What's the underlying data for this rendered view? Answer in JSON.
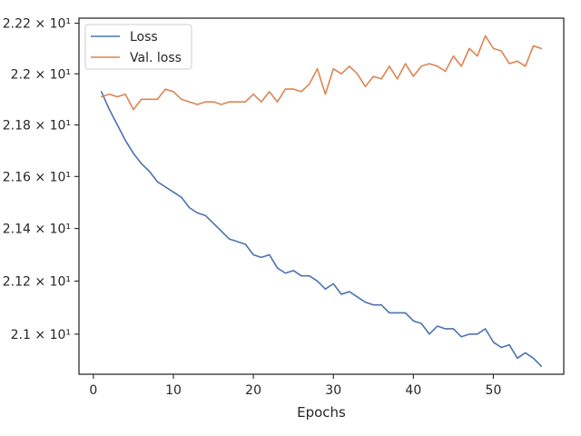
{
  "chart_data": {
    "type": "line",
    "title": "",
    "xlabel": "Epochs",
    "ylabel": "",
    "xlim": [
      -1.8,
      58.8
    ],
    "ylim": [
      20.85,
      22.22
    ],
    "y_scale": "log",
    "x_ticks": [
      0,
      10,
      20,
      30,
      40,
      50
    ],
    "x_tick_labels": [
      "0",
      "10",
      "20",
      "30",
      "40",
      "50"
    ],
    "y_ticks": [
      21.0,
      21.2,
      21.4,
      21.6,
      21.8,
      22.0,
      22.2
    ],
    "y_tick_labels": [
      "2.1 × 10¹",
      "2.12 × 10¹",
      "2.14 × 10¹",
      "2.16 × 10¹",
      "2.18 × 10¹",
      "2.2 × 10¹",
      "2.22 × 10¹"
    ],
    "grid": false,
    "legend_position": "top-left",
    "x": [
      1,
      2,
      3,
      4,
      5,
      6,
      7,
      8,
      9,
      10,
      11,
      12,
      13,
      14,
      15,
      16,
      17,
      18,
      19,
      20,
      21,
      22,
      23,
      24,
      25,
      26,
      27,
      28,
      29,
      30,
      31,
      32,
      33,
      34,
      35,
      36,
      37,
      38,
      39,
      40,
      41,
      42,
      43,
      44,
      45,
      46,
      47,
      48,
      49,
      50,
      51,
      52,
      53,
      54,
      55,
      56
    ],
    "series": [
      {
        "name": "Loss",
        "color": "#4c72b0",
        "values": [
          21.93,
          21.86,
          21.8,
          21.74,
          21.69,
          21.65,
          21.62,
          21.58,
          21.56,
          21.54,
          21.52,
          21.48,
          21.46,
          21.45,
          21.42,
          21.39,
          21.36,
          21.35,
          21.34,
          21.3,
          21.29,
          21.3,
          21.25,
          21.23,
          21.24,
          21.22,
          21.22,
          21.2,
          21.17,
          21.19,
          21.15,
          21.16,
          21.14,
          21.12,
          21.11,
          21.11,
          21.08,
          21.08,
          21.08,
          21.05,
          21.04,
          21.0,
          21.03,
          21.02,
          21.02,
          20.99,
          21.0,
          21.0,
          21.02,
          20.97,
          20.95,
          20.96,
          20.91,
          20.93,
          20.91,
          20.88
        ]
      },
      {
        "name": "Val. loss",
        "color": "#dd8452",
        "values": [
          21.91,
          21.92,
          21.91,
          21.92,
          21.86,
          21.9,
          21.9,
          21.9,
          21.94,
          21.93,
          21.9,
          21.89,
          21.88,
          21.89,
          21.89,
          21.88,
          21.89,
          21.89,
          21.89,
          21.92,
          21.89,
          21.93,
          21.89,
          21.94,
          21.94,
          21.93,
          21.96,
          22.02,
          21.92,
          22.02,
          22.0,
          22.03,
          22.0,
          21.95,
          21.99,
          21.98,
          22.03,
          21.98,
          22.04,
          21.99,
          22.03,
          22.04,
          22.03,
          22.01,
          22.07,
          22.03,
          22.1,
          22.07,
          22.15,
          22.1,
          22.09,
          22.04,
          22.05,
          22.03,
          22.11,
          22.1
        ]
      }
    ]
  }
}
